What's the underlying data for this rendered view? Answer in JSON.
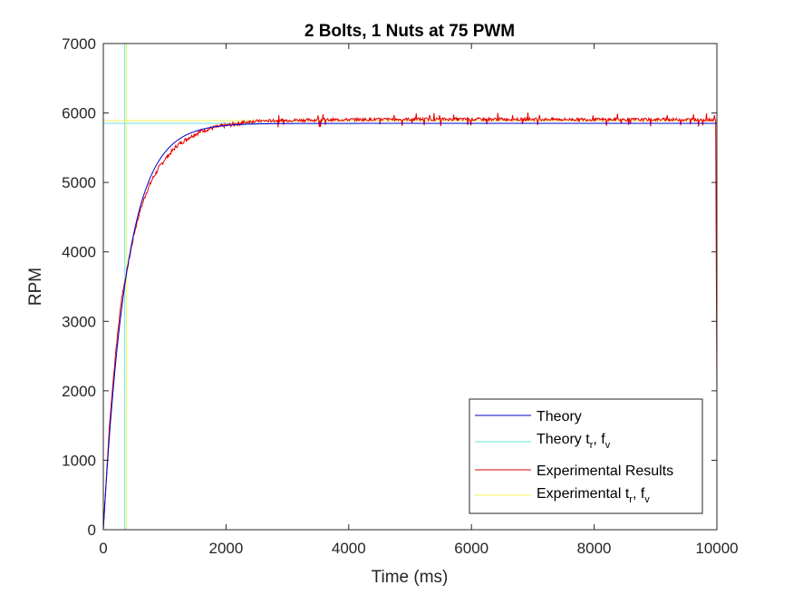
{
  "chart_data": {
    "type": "line",
    "title": "2 Bolts, 1 Nuts at 75 PWM",
    "xlabel": "Time (ms)",
    "ylabel": "RPM",
    "xlim": [
      0,
      10000
    ],
    "ylim": [
      0,
      7000
    ],
    "xticks": [
      0,
      2000,
      4000,
      6000,
      8000,
      10000
    ],
    "yticks": [
      0,
      1000,
      2000,
      3000,
      4000,
      5000,
      6000,
      7000
    ],
    "grid": false,
    "legend_position": "bottom-right",
    "series": [
      {
        "name": "Theory",
        "color": "#0000cc",
        "model": "first-order step response",
        "steady_state": 5850,
        "time_constant_ms": 380,
        "x_end": 10000
      },
      {
        "name": "Theory t_r, f_v",
        "legend_main": "Theory t",
        "legend_sub1": "r",
        "legend_mid": ", f",
        "legend_sub2": "v",
        "color": "#66e0e0",
        "vertical_x": 350,
        "horizontal_y": 5850
      },
      {
        "name": "Experimental Results",
        "color": "#e60000",
        "points": [
          [
            0,
            0
          ],
          [
            100,
            1500
          ],
          [
            200,
            2550
          ],
          [
            300,
            3350
          ],
          [
            400,
            3800
          ],
          [
            500,
            4250
          ],
          [
            600,
            4600
          ],
          [
            700,
            4850
          ],
          [
            800,
            5050
          ],
          [
            900,
            5200
          ],
          [
            1000,
            5330
          ],
          [
            1200,
            5530
          ],
          [
            1400,
            5650
          ],
          [
            1600,
            5740
          ],
          [
            1800,
            5790
          ],
          [
            2000,
            5820
          ],
          [
            2200,
            5850
          ],
          [
            2400,
            5880
          ],
          [
            3000,
            5895
          ],
          [
            4000,
            5905
          ],
          [
            5000,
            5910
          ],
          [
            6000,
            5910
          ],
          [
            7000,
            5910
          ],
          [
            8000,
            5905
          ],
          [
            9000,
            5905
          ],
          [
            9980,
            5905
          ],
          [
            10000,
            1900
          ]
        ]
      },
      {
        "name": "Experimental t_r, f_v",
        "legend_main": "Experimental t",
        "legend_sub1": "r",
        "legend_mid": ", f",
        "legend_sub2": "v",
        "color": "#f2f25a",
        "vertical_x": 380,
        "horizontal_y": 5890
      }
    ]
  }
}
